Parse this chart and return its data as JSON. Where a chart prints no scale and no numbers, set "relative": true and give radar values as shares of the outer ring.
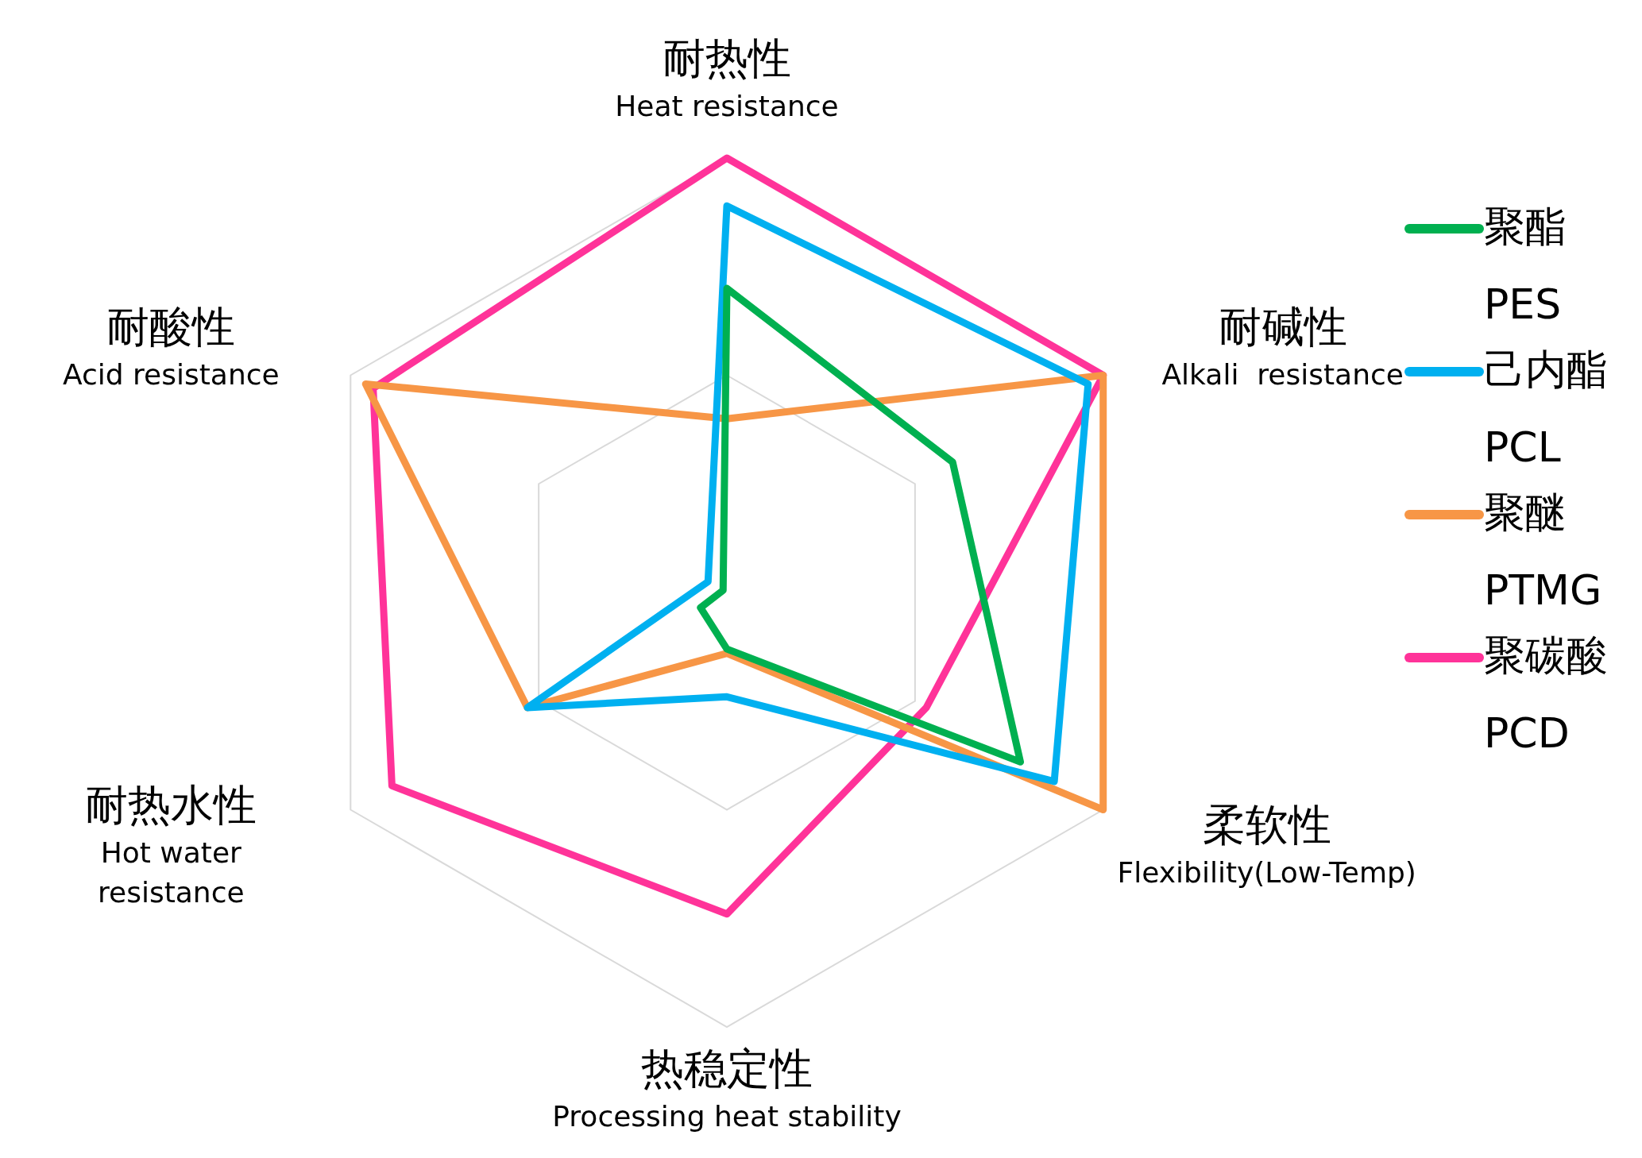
{
  "chart_data": {
    "type": "radar",
    "relative": true,
    "legend": "right",
    "categories": [
      "耐热性\nHeat resistance",
      "耐碱性\nAlkali  resistance",
      "柔软性\nFlexibility(Low-Temp)",
      "热稳定性\nProcessing heat stability",
      "耐热水性\nHot water\nresistance",
      "耐酸性\nAcid resistance"
    ],
    "series": [
      {
        "name": "聚酯\nPES",
        "color": "#00b050",
        "values": [
          0.7,
          0.6,
          0.78,
          0.13,
          0.07,
          0.01
        ]
      },
      {
        "name": "己内酯\nPCL",
        "color": "#00b0f0",
        "values": [
          0.89,
          0.96,
          0.87,
          0.24,
          0.53,
          0.05
        ]
      },
      {
        "name": "聚醚\nPTMG",
        "color": "#f79646",
        "values": [
          0.4,
          1.0,
          1.0,
          0.14,
          0.53,
          0.96
        ]
      },
      {
        "name": "聚碳酸\nPCD",
        "color": "#ff3399",
        "values": [
          1.0,
          1.0,
          0.53,
          0.74,
          0.89,
          0.94
        ]
      }
    ]
  }
}
